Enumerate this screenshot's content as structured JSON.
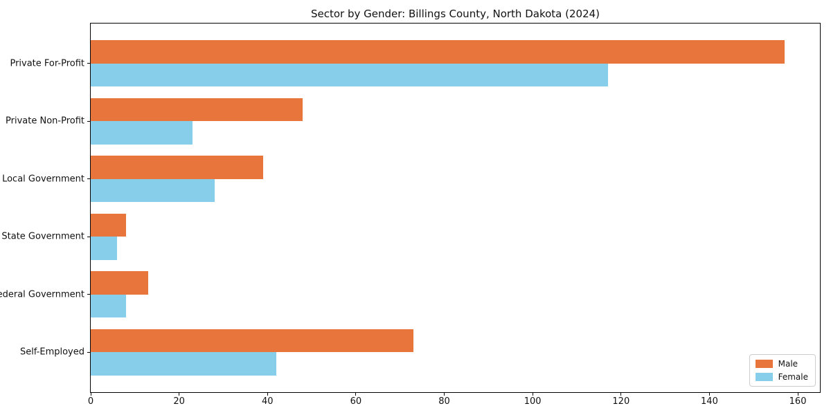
{
  "chart_data": {
    "type": "bar",
    "orientation": "horizontal",
    "title": "Sector by Gender: Billings County, North Dakota (2024)",
    "categories": [
      "Private For-Profit",
      "Private Non-Profit",
      "Local Government",
      "State Government",
      "Federal Government",
      "Self-Employed"
    ],
    "series": [
      {
        "name": "Male",
        "color": "#e8763c",
        "values": [
          157,
          48,
          39,
          8,
          13,
          73
        ]
      },
      {
        "name": "Female",
        "color": "#87ceeb",
        "values": [
          117,
          23,
          28,
          6,
          8,
          42
        ]
      }
    ],
    "xlabel": "",
    "ylabel": "",
    "xlim": [
      0,
      165
    ],
    "xticks": [
      0,
      20,
      40,
      60,
      80,
      100,
      120,
      140,
      160
    ],
    "grid": false,
    "legend_position": "lower right",
    "background_color": "#ffffff",
    "spine_color": "#000000"
  }
}
